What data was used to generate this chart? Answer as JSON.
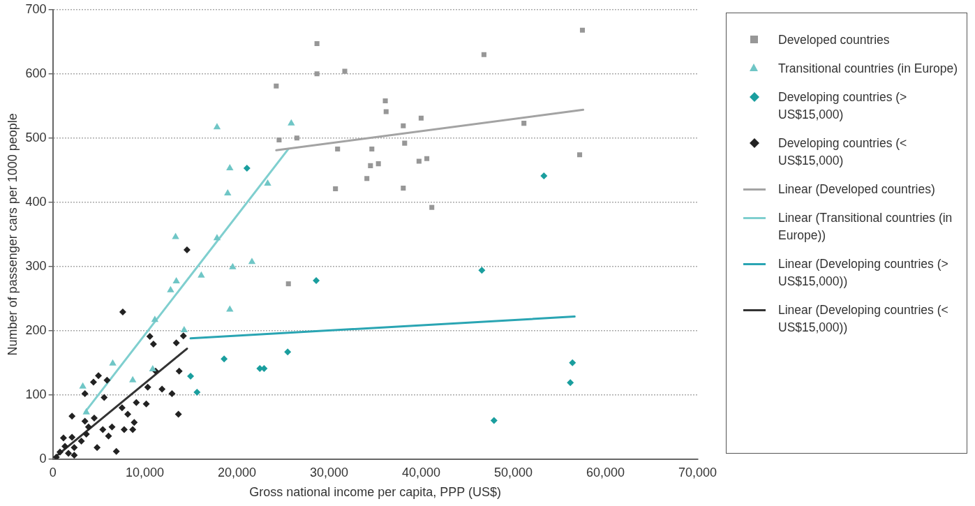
{
  "chart_data": {
    "type": "scatter",
    "xlabel": "Gross national income per capita, PPP (US$)",
    "ylabel": "Number of passenger cars per 1000 people",
    "xlim": [
      0,
      70000
    ],
    "xticks": [
      0,
      {
        "value": 10000,
        "label": "10,000"
      },
      {
        "value": 20000,
        "label": "20,000"
      },
      {
        "value": 30000,
        "label": "30,000"
      },
      {
        "value": 40000,
        "label": "40,000"
      },
      {
        "value": 50000,
        "label": "50,000"
      },
      {
        "value": 60000,
        "label": "60,000"
      },
      {
        "value": 70000,
        "label": "70,000"
      }
    ],
    "ylim": [
      0,
      700
    ],
    "yticks": [
      0,
      100,
      200,
      300,
      400,
      500,
      600,
      700
    ],
    "grid": "y",
    "legend": "right",
    "series": [
      {
        "name": "Developed countries",
        "color": "#979797",
        "marker": "square",
        "x": [
          24260,
          28680,
          28680,
          31700,
          24570,
          26500,
          25580,
          30920,
          30690,
          34640,
          34490,
          35350,
          34100,
          36100,
          36190,
          38050,
          38200,
          38050,
          39990,
          39760,
          40610,
          41150,
          46810,
          51150,
          57200,
          57500
        ],
        "values": [
          581,
          647,
          600,
          604,
          497,
          500,
          273,
          483,
          421,
          483,
          457,
          460,
          437,
          558,
          541,
          519,
          492,
          422,
          531,
          464,
          468,
          392,
          630,
          523,
          474,
          668
        ]
      },
      {
        "name": "Transitional countries (in Europe)",
        "color": "#6fc6c6",
        "marker": "triangle",
        "x": [
          17830,
          19220,
          18990,
          25890,
          23330,
          17830,
          13330,
          19530,
          21620,
          16120,
          13410,
          12790,
          19220,
          11080,
          14260,
          6510,
          8680,
          3260,
          10850,
          3640
        ],
        "values": [
          517,
          453,
          414,
          523,
          429,
          344,
          346,
          299,
          307,
          286,
          277,
          263,
          233,
          217,
          201,
          149,
          123,
          113,
          140,
          73
        ]
      },
      {
        "name": "Developing countries (> US$15,000)",
        "color": "#1a9e9e",
        "marker": "diamond",
        "x": [
          21080,
          28600,
          25500,
          18600,
          22480,
          22940,
          14960,
          15660,
          53320,
          46580,
          47900,
          56420,
          56190
        ],
        "values": [
          453,
          278,
          167,
          156,
          141,
          141,
          129,
          104,
          441,
          294,
          60,
          150,
          119
        ]
      },
      {
        "name": "Developing countries (< US$15,000)",
        "color": "#222222",
        "marker": "diamond",
        "x": [
          14570,
          7600,
          10540,
          10930,
          13410,
          14180,
          11160,
          13720,
          11860,
          12940,
          13640,
          10310,
          4960,
          5890,
          4420,
          3490,
          5580,
          2090,
          4500,
          3490,
          7520,
          8140,
          9070,
          10150,
          8840,
          8680,
          7750,
          6430,
          6050,
          5430,
          4810,
          6900,
          3880,
          3640,
          3100,
          2330,
          1160,
          2090,
          1320,
          780,
          1700,
          390,
          2330
        ],
        "values": [
          326,
          229,
          191,
          179,
          181,
          192,
          137,
          137,
          109,
          102,
          70,
          112,
          130,
          123,
          120,
          102,
          96,
          67,
          64,
          59,
          80,
          70,
          88,
          86,
          57,
          46,
          46,
          50,
          36,
          46,
          18,
          12,
          50,
          39,
          28,
          18,
          33,
          34,
          20,
          11,
          9,
          3,
          6
        ]
      },
      {
        "name": "Linear (Developed countries)",
        "type": "line",
        "line_style": "solid",
        "color": "#a3a3a3",
        "x": [
          24260,
          57580
        ],
        "values": [
          481,
          544
        ]
      },
      {
        "name": "Linear (Transitional countries (in Europe))",
        "type": "line",
        "line_style": "solid",
        "color": "#7fcfcf",
        "x": [
          3490,
          25580
        ],
        "values": [
          73,
          483
        ]
      },
      {
        "name": "Linear (Developing countries (> US$15,000))",
        "type": "line",
        "line_style": "solid",
        "color": "#2aa5b3",
        "x": [
          14960,
          56650
        ],
        "values": [
          188,
          222
        ]
      },
      {
        "name": "Linear (Developing countries (< US$15,000))",
        "type": "line",
        "line_style": "solid",
        "color": "#333333",
        "x": [
          230,
          14570
        ],
        "values": [
          3,
          172
        ]
      }
    ]
  }
}
